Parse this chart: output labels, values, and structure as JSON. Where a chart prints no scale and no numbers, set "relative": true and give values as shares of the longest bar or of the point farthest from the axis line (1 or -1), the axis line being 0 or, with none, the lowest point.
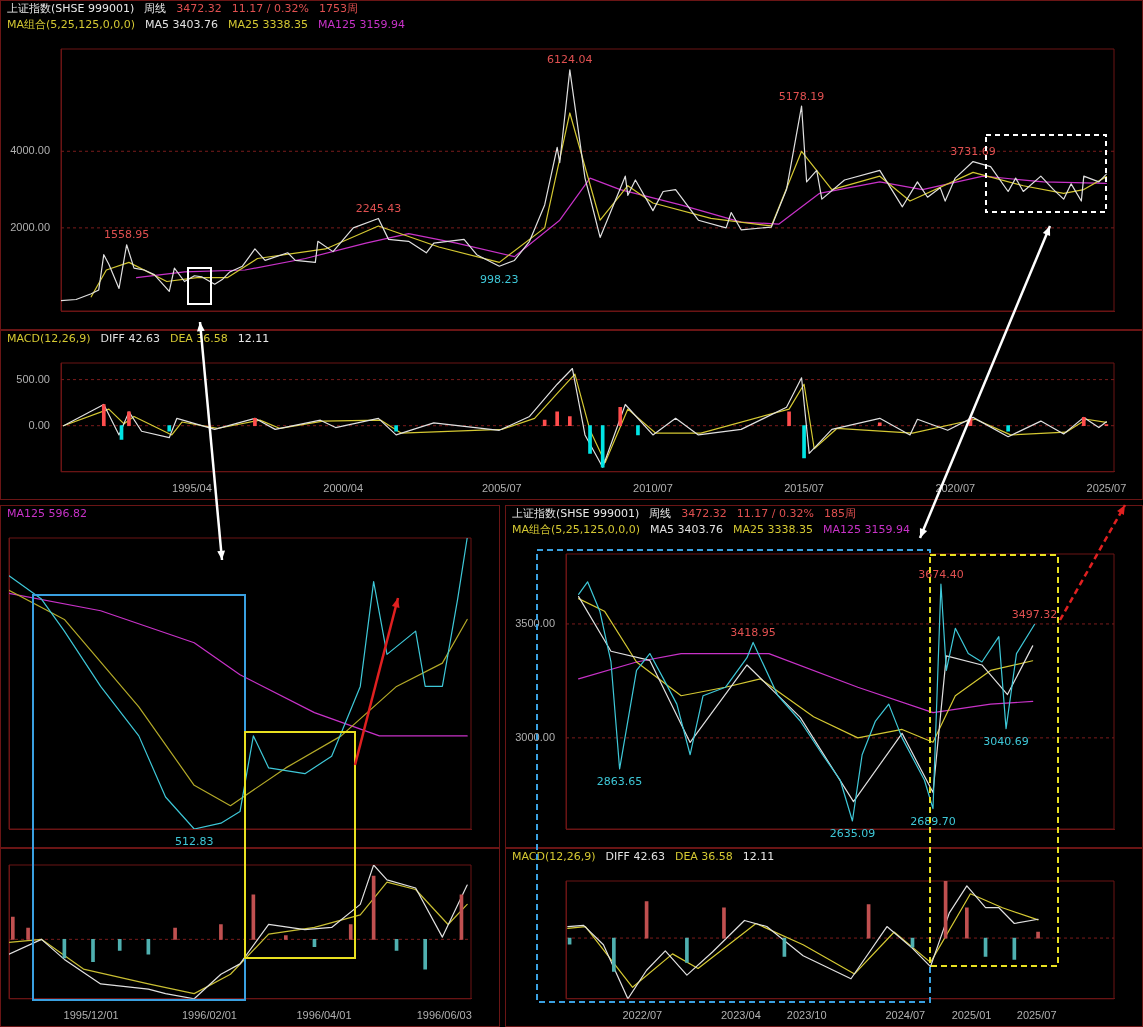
{
  "chart_data": [
    {
      "type": "line",
      "title": "上证指数(SHSE 999001)",
      "subtitle": "周线",
      "legend_title": "MA组合(5,25,125,0,0,0)",
      "legend": "top left",
      "grid": "y",
      "tick_labels": "y",
      "annotations": [
        "3472.32",
        "11.17 / 0.32%",
        "1753周",
        {
          "text": "1558.95",
          "x": "1993-02",
          "y": 1558.95
        },
        {
          "text": "2245.43",
          "x": "2001-06",
          "y": 2245.43
        },
        {
          "text": "998.23",
          "x": "2005-06",
          "y": 998.23
        },
        {
          "text": "6124.04",
          "x": "2007-10",
          "y": 6124.04
        },
        {
          "text": "5178.19",
          "x": "2015-06",
          "y": 5178.19
        },
        {
          "text": "3731.69",
          "x": "2021-02",
          "y": 3731.69
        }
      ],
      "xlim": [
        "1990-12",
        "2025-10"
      ],
      "ylim": [
        -170,
        6670
      ],
      "yticks": [
        {
          "value": 2000,
          "label": "2000.00"
        },
        {
          "value": 4000,
          "label": "4000.00"
        }
      ],
      "series": [
        {
          "name": "MA5 3403.76",
          "color": "#e0e0e0",
          "x": [
            "1990-12",
            "1991-06",
            "1991-12",
            "1992-03",
            "1992-05",
            "1992-07",
            "1992-11",
            "1993-02",
            "1993-05",
            "1993-09",
            "1994-01",
            "1994-07",
            "1994-09",
            "1995-01",
            "1995-05",
            "1995-08",
            "1996-01",
            "1996-04",
            "1996-07",
            "1996-12",
            "1997-05",
            "1997-09",
            "1998-06",
            "1998-09",
            "1999-05",
            "1999-06",
            "1999-12",
            "2000-08",
            "2001-06",
            "2001-10",
            "2002-06",
            "2003-01",
            "2003-04",
            "2004-04",
            "2004-09",
            "2005-06",
            "2005-12",
            "2006-06",
            "2006-12",
            "2007-05",
            "2007-06",
            "2007-10",
            "2008-04",
            "2008-06",
            "2008-10",
            "2009-08",
            "2009-09",
            "2009-12",
            "2010-07",
            "2010-11",
            "2011-04",
            "2012-01",
            "2012-12",
            "2013-02",
            "2013-06",
            "2014-06",
            "2014-12",
            "2015-06",
            "2015-08",
            "2015-12",
            "2016-02",
            "2016-11",
            "2018-01",
            "2018-10",
            "2019-04",
            "2019-08",
            "2020-01",
            "2020-03",
            "2020-07",
            "2021-02",
            "2021-09",
            "2022-04",
            "2022-07",
            "2022-10",
            "2023-05",
            "2023-10",
            "2024-02",
            "2024-05",
            "2024-09",
            "2024-10",
            "2025-04",
            "2025-07"
          ],
          "values": [
            100,
            130,
            280,
            380,
            1300,
            1050,
            420,
            1558.95,
            950,
            900,
            780,
            340,
            950,
            600,
            750,
            720,
            530,
            650,
            850,
            1000,
            1450,
            1150,
            1350,
            1150,
            1100,
            1650,
            1380,
            2000,
            2245.43,
            1700,
            1650,
            1350,
            1600,
            1700,
            1300,
            998.23,
            1150,
            1650,
            2600,
            4100,
            3700,
            6124.04,
            3300,
            2800,
            1750,
            3350,
            2850,
            3250,
            2450,
            2950,
            3000,
            2200,
            2000,
            2400,
            1950,
            2020,
            3000,
            5178.19,
            3200,
            3500,
            2750,
            3250,
            3500,
            2550,
            3200,
            2800,
            3050,
            2700,
            3300,
            3731.69,
            3600,
            2950,
            3300,
            2950,
            3350,
            3000,
            2750,
            3150,
            2700,
            3350,
            3200,
            3403.76
          ]
        },
        {
          "name": "MA25 3338.35",
          "color": "#d4c832",
          "x": [
            "1991-12",
            "1992-06",
            "1993-03",
            "1994-06",
            "1995-06",
            "1996-06",
            "1997-06",
            "1999-09",
            "2001-06",
            "2003-06",
            "2005-06",
            "2006-12",
            "2007-10",
            "2008-10",
            "2009-09",
            "2010-07",
            "2012-06",
            "2014-06",
            "2015-06",
            "2016-06",
            "2018-01",
            "2019-01",
            "2021-02",
            "2022-10",
            "2024-02",
            "2024-10",
            "2025-07"
          ],
          "values": [
            200,
            900,
            1100,
            600,
            700,
            700,
            1200,
            1450,
            2050,
            1500,
            1100,
            2000,
            5000,
            2200,
            3100,
            2650,
            2250,
            2050,
            4000,
            3000,
            3350,
            2700,
            3450,
            3100,
            2900,
            3000,
            3338.35
          ]
        },
        {
          "name": "MA125 3159.94",
          "color": "#c832c8",
          "x": [
            "1993-06",
            "1995-01",
            "1997-01",
            "1999-01",
            "2001-01",
            "2002-06",
            "2004-01",
            "2005-12",
            "2007-06",
            "2008-06",
            "2009-06",
            "2011-06",
            "2013-06",
            "2014-09",
            "2016-01",
            "2018-01",
            "2019-06",
            "2021-06",
            "2023-06",
            "2025-07"
          ],
          "values": [
            700,
            850,
            900,
            1200,
            1600,
            1850,
            1600,
            1250,
            2200,
            3300,
            3000,
            2600,
            2150,
            2100,
            2900,
            3200,
            3000,
            3350,
            3200,
            3159.94
          ]
        }
      ]
    },
    {
      "type": "line",
      "legend_title": "MACD(12,26,9)",
      "legend": "top left",
      "grid": "y",
      "annotations": [
        "12.11"
      ],
      "xlim": [
        "1990-12",
        "2025-10"
      ],
      "xticks": [
        {
          "value": "1995-04",
          "label": "1995/04"
        },
        {
          "value": "2000-04",
          "label": "2000/04"
        },
        {
          "value": "2005-07",
          "label": "2005/07"
        },
        {
          "value": "2010-07",
          "label": "2010/07"
        },
        {
          "value": "2015-07",
          "label": "2015/07"
        },
        {
          "value": "2020-07",
          "label": "2020/07"
        },
        {
          "value": "2025-07",
          "label": "2025/07"
        }
      ],
      "ylim": [
        -500,
        680
      ],
      "yticks": [
        {
          "value": 0,
          "label": "0.00"
        },
        {
          "value": 500,
          "label": "500.00"
        }
      ],
      "series": [
        {
          "type": "bar",
          "x": [
            "1992-05",
            "1992-12",
            "1993-03",
            "1994-07",
            "1997-05",
            "2002-01",
            "2006-12",
            "2007-05",
            "2007-10",
            "2008-06",
            "2008-11",
            "2009-06",
            "2010-01",
            "2015-01",
            "2015-07",
            "2018-01",
            "2021-01",
            "2022-04",
            "2024-10",
            "2025-07"
          ],
          "values": [
            230,
            -150,
            150,
            -60,
            80,
            -60,
            60,
            150,
            100,
            -300,
            -450,
            200,
            -100,
            150,
            -350,
            30,
            80,
            -60,
            90,
            12.11
          ],
          "colors": [
            "#ff4d4d",
            "#00e5e5",
            "#ff4d4d",
            "#00e5e5",
            "#ff4d4d",
            "#00e5e5",
            "#ff4d4d",
            "#ff4d4d",
            "#ff4d4d",
            "#00e5e5",
            "#00e5e5",
            "#ff4d4d",
            "#00e5e5",
            "#ff4d4d",
            "#00e5e5",
            "#ff4d4d",
            "#ff4d4d",
            "#00e5e5",
            "#ff4d4d",
            "#ff4d4d"
          ]
        },
        {
          "name": "DIFF 42.63",
          "color": "#e0e0e0",
          "x": [
            "1991-01",
            "1992-05",
            "1992-11",
            "1993-03",
            "1993-08",
            "1994-07",
            "1994-10",
            "1996-01",
            "1997-05",
            "1998-01",
            "1999-07",
            "2000-01",
            "2001-06",
            "2002-01",
            "2003-04",
            "2005-06",
            "2006-06",
            "2007-05",
            "2007-11",
            "2008-04",
            "2008-11",
            "2009-08",
            "2010-07",
            "2011-04",
            "2012-01",
            "2013-06",
            "2014-12",
            "2015-06",
            "2015-09",
            "2016-06",
            "2018-01",
            "2019-01",
            "2019-04",
            "2020-04",
            "2021-02",
            "2022-04",
            "2023-05",
            "2024-02",
            "2024-10",
            "2025-04",
            "2025-07"
          ],
          "values": [
            0,
            230,
            -100,
            150,
            -60,
            -130,
            80,
            -40,
            80,
            -40,
            60,
            -20,
            80,
            -100,
            30,
            -50,
            100,
            450,
            620,
            -100,
            -450,
            230,
            -100,
            80,
            -100,
            -40,
            200,
            520,
            -300,
            -40,
            80,
            -100,
            70,
            -50,
            90,
            -120,
            50,
            -90,
            90,
            -20,
            42.63
          ]
        },
        {
          "name": "DEA 36.58",
          "color": "#d4c832",
          "x": [
            "1991-01",
            "1992-07",
            "1993-01",
            "1993-05",
            "1994-08",
            "1994-12",
            "1996-02",
            "1997-07",
            "1998-03",
            "1999-08",
            "2001-07",
            "2002-03",
            "2005-07",
            "2006-08",
            "2007-06",
            "2007-12",
            "2008-06",
            "2008-12",
            "2009-09",
            "2010-08",
            "2012-02",
            "2015-01",
            "2015-07",
            "2015-11",
            "2016-08",
            "2019-02",
            "2021-03",
            "2022-05",
            "2024-03",
            "2024-11",
            "2025-07"
          ],
          "values": [
            0,
            180,
            20,
            100,
            -100,
            40,
            -30,
            60,
            -30,
            50,
            60,
            -80,
            -40,
            80,
            380,
            560,
            -50,
            -400,
            180,
            -80,
            -80,
            180,
            450,
            -250,
            -30,
            -80,
            70,
            -100,
            -70,
            70,
            36.58
          ]
        }
      ]
    },
    {
      "type": "line",
      "relative": true,
      "legend": "top left",
      "tick_labels": false,
      "annotations": [
        {
          "text": "512.83",
          "x": "1996-01-24",
          "y": 0
        }
      ],
      "xlim": [
        "1995-10-19",
        "1996-06-17"
      ],
      "series": [
        {
          "color": "#3ec8d8",
          "x": [
            "1995-10-19",
            "1995-11-05",
            "1995-11-17",
            "1995-12-06",
            "1995-12-26",
            "1996-01-09",
            "1996-01-24",
            "1996-02-07",
            "1996-02-17",
            "1996-02-24",
            "1996-03-03",
            "1996-03-22",
            "1996-04-05",
            "1996-04-20",
            "1996-04-27",
            "1996-05-04",
            "1996-05-19",
            "1996-05-24",
            "1996-06-02",
            "1996-06-10",
            "1996-06-15"
          ],
          "values": [
            0.87,
            0.79,
            0.68,
            0.49,
            0.32,
            0.11,
            0,
            0.02,
            0.06,
            0.32,
            0.21,
            0.19,
            0.25,
            0.49,
            0.85,
            0.6,
            0.68,
            0.49,
            0.49,
            0.79,
            1
          ]
        },
        {
          "color": "#b4aa28",
          "x": [
            "1995-10-19",
            "1995-11-17",
            "1995-12-26",
            "1996-01-24",
            "1996-02-12",
            "1996-03-12",
            "1996-04-10",
            "1996-05-09",
            "1996-06-02",
            "1996-06-15"
          ],
          "values": [
            0.82,
            0.72,
            0.42,
            0.15,
            0.08,
            0.21,
            0.32,
            0.49,
            0.57,
            0.72
          ]
        },
        {
          "name": "MA125 596.82",
          "color": "#c832c8",
          "x": [
            "1995-10-19",
            "1995-12-06",
            "1996-01-24",
            "1996-02-17",
            "1996-03-27",
            "1996-04-30",
            "1996-06-15"
          ],
          "values": [
            0.81,
            0.75,
            0.64,
            0.53,
            0.4,
            0.32,
            0.32
          ]
        }
      ]
    },
    {
      "type": "line",
      "relative": true,
      "tick_labels": "x",
      "ref_lines": [
        {
          "axis": "y",
          "value": 0,
          "color": "#7a1c1c",
          "line_style": "dashed"
        }
      ],
      "xlim": [
        "1995-10-19",
        "1996-06-17"
      ],
      "xticks": [
        {
          "value": "1995-12-01",
          "label": "1995/12/01"
        },
        {
          "value": "1996-02-01",
          "label": "1996/02/01"
        },
        {
          "value": "1996-04-01",
          "label": "1996/04/01"
        },
        {
          "value": "1996-06-03",
          "label": "1996/06/03"
        }
      ],
      "series": [
        {
          "type": "bar",
          "x": [
            "1995-10-21",
            "1995-10-29",
            "1995-11-17",
            "1995-12-02",
            "1995-12-16",
            "1995-12-31",
            "1996-01-14",
            "1996-02-07",
            "1996-02-24",
            "1996-03-12",
            "1996-03-27",
            "1996-04-15",
            "1996-04-27",
            "1996-05-09",
            "1996-05-24",
            "1996-06-12"
          ],
          "values": [
            0.3,
            0.15,
            -0.25,
            -0.3,
            -0.15,
            -0.2,
            0.15,
            0.2,
            0.6,
            0.05,
            -0.1,
            0.2,
            0.85,
            -0.15,
            -0.4,
            0.6
          ],
          "colors": [
            "#c05050",
            "#c05050",
            "#4fb0b0",
            "#4fb0b0",
            "#4fb0b0",
            "#4fb0b0",
            "#c05050",
            "#c05050",
            "#c05050",
            "#c05050",
            "#4fb0b0",
            "#c05050",
            "#c05050",
            "#4fb0b0",
            "#4fb0b0",
            "#c05050"
          ]
        },
        {
          "color": "#e0e0e0",
          "x": [
            "1995-10-19",
            "1995-11-05",
            "1995-11-17",
            "1995-12-06",
            "1995-12-31",
            "1996-01-09",
            "1996-01-24",
            "1996-02-07",
            "1996-02-17",
            "1996-03-03",
            "1996-03-22",
            "1996-04-05",
            "1996-04-20",
            "1996-04-27",
            "1996-05-04",
            "1996-05-19",
            "1996-06-02",
            "1996-06-15"
          ],
          "values": [
            -0.2,
            0,
            -0.27,
            -0.6,
            -0.67,
            -0.73,
            -0.8,
            -0.47,
            -0.33,
            0.2,
            0.13,
            0.16,
            0.47,
            1,
            0.8,
            0.69,
            0.03,
            0.73
          ]
        },
        {
          "color": "#c8be32",
          "x": [
            "1995-10-19",
            "1995-11-05",
            "1995-11-27",
            "1995-12-31",
            "1996-01-24",
            "1996-02-12",
            "1996-03-03",
            "1996-03-27",
            "1996-04-20",
            "1996-05-04",
            "1996-05-19",
            "1996-06-05",
            "1996-06-15"
          ],
          "values": [
            -0.04,
            0,
            -0.4,
            -0.6,
            -0.73,
            -0.47,
            0.07,
            0.16,
            0.33,
            0.77,
            0.67,
            0.2,
            0.47
          ]
        }
      ]
    },
    {
      "type": "line",
      "title": "上证指数(SHSE 999001)",
      "subtitle": "周线",
      "legend_title": "MA组合(5,25,125,0,0,0)",
      "legend": "top left",
      "tick_labels": "y",
      "grid": "y",
      "annotations": [
        "3472.32",
        "11.17 / 0.32%",
        "185周",
        {
          "text": "2863.65",
          "x": "2022-04-29",
          "y": 2863.65
        },
        {
          "text": "3418.95",
          "x": "2023-05-05",
          "y": 3418.95
        },
        {
          "text": "2635.09",
          "x": "2024-02-05",
          "y": 2635.09
        },
        {
          "text": "2689.70",
          "x": "2024-09-16",
          "y": 2689.7
        },
        {
          "text": "3674.40",
          "x": "2024-10-08",
          "y": 3674.4
        },
        {
          "text": "3040.69",
          "x": "2025-04-07",
          "y": 3040.69
        },
        {
          "text": "3497.32",
          "x": "2025-06-25",
          "y": 3497.32
        }
      ],
      "xlim": [
        "2021-12-01",
        "2026-02-01"
      ],
      "ylim": [
        2600,
        3807
      ],
      "yticks": [
        {
          "value": 3000,
          "label": "3000.00"
        },
        {
          "value": 3500,
          "label": "3500.00"
        }
      ],
      "series": [
        {
          "color": "#3ec8d8",
          "x": [
            "2022-01-05",
            "2022-01-30",
            "2022-03-05",
            "2022-04-05",
            "2022-04-29",
            "2022-06-15",
            "2022-07-22",
            "2022-08-29",
            "2022-10-05",
            "2022-11-11",
            "2022-12-17",
            "2023-02-17",
            "2023-04-18",
            "2023-05-05",
            "2023-07-13",
            "2023-09-13",
            "2023-11-14",
            "2024-01-02",
            "2024-02-05",
            "2024-03-03",
            "2024-04-09",
            "2024-05-16",
            "2024-06-22",
            "2024-08-23",
            "2024-09-16",
            "2024-10-08",
            "2024-10-23",
            "2024-11-17",
            "2024-12-23",
            "2025-01-30",
            "2025-03-18",
            "2025-04-07",
            "2025-05-06",
            "2025-06-25"
          ],
          "values": [
            3630,
            3685,
            3556,
            3333,
            2863.65,
            3296,
            3370,
            3259,
            3148,
            2926,
            3185,
            3222,
            3352,
            3418.95,
            3185,
            3074,
            2926,
            2815,
            2635.09,
            2926,
            3074,
            3148,
            3000,
            2815,
            2689.7,
            3674.4,
            3296,
            3481,
            3370,
            3333,
            3444,
            3040.69,
            3370,
            3497.32
          ]
        },
        {
          "name": "MA5 3403.76",
          "color": "#e0e0e0",
          "x": [
            "2022-01-05",
            "2022-04-05",
            "2022-07-22",
            "2022-11-11",
            "2023-04-18",
            "2023-09-13",
            "2024-02-08",
            "2024-06-22",
            "2024-09-16",
            "2024-10-23",
            "2025-01-30",
            "2025-04-11",
            "2025-06-20"
          ],
          "values": [
            3620,
            3380,
            3340,
            2980,
            3320,
            3090,
            2720,
            3020,
            2760,
            3360,
            3320,
            3190,
            3403.76
          ]
        },
        {
          "name": "MA25 3338.35",
          "color": "#d4c832",
          "x": [
            "2022-01-05",
            "2022-03-18",
            "2022-06-15",
            "2022-10-17",
            "2023-02-17",
            "2023-05-25",
            "2023-10-20",
            "2024-02-20",
            "2024-06-22",
            "2024-09-16",
            "2024-11-17",
            "2025-02-23",
            "2025-06-20"
          ],
          "values": [
            3611,
            3556,
            3333,
            3185,
            3222,
            3259,
            3093,
            3000,
            3037,
            2981,
            3185,
            3296,
            3338.35
          ]
        },
        {
          "name": "MA125 3159.94",
          "color": "#c832c8",
          "x": [
            "2022-01-05",
            "2022-06-15",
            "2022-10-17",
            "2023-06-18",
            "2024-02-20",
            "2024-09-16",
            "2025-02-23",
            "2025-06-20"
          ],
          "values": [
            3259,
            3333,
            3370,
            3370,
            3222,
            3111,
            3148,
            3159.94
          ]
        }
      ]
    },
    {
      "type": "line",
      "relative": true,
      "legend_title": "MACD(12,26,9)",
      "legend": "top left",
      "tick_labels": "x",
      "annotations": [
        "12.11"
      ],
      "ref_lines": [
        {
          "axis": "y",
          "value": 0,
          "color": "#7a1c1c",
          "line_style": "dashed"
        }
      ],
      "xlim": [
        "2021-12-01",
        "2026-02-01"
      ],
      "xticks": [
        {
          "value": "2022-07-01",
          "label": "2022/07"
        },
        {
          "value": "2023-04-01",
          "label": "2023/04"
        },
        {
          "value": "2023-10-01",
          "label": "2023/10"
        },
        {
          "value": "2024-07-01",
          "label": "2024/07"
        },
        {
          "value": "2025-01-01",
          "label": "2025/01"
        },
        {
          "value": "2025-07-01",
          "label": "2025/07"
        }
      ],
      "series": [
        {
          "type": "bar",
          "x": [
            "2021-12-11",
            "2022-04-13",
            "2022-07-13",
            "2022-11-02",
            "2023-02-13",
            "2023-07-31",
            "2024-03-21",
            "2024-07-21",
            "2024-10-21",
            "2024-12-19",
            "2025-02-09",
            "2025-04-30",
            "2025-07-05"
          ],
          "values": [
            -0.1,
            -0.55,
            0.6,
            -0.4,
            0.5,
            -0.3,
            0.55,
            -0.15,
            0.94,
            0.5,
            -0.3,
            -0.35,
            0.1
          ],
          "colors": [
            "#4fb0b0",
            "#4fb0b0",
            "#c05050",
            "#4fb0b0",
            "#c05050",
            "#4fb0b0",
            "#c05050",
            "#4fb0b0",
            "#c05050",
            "#c05050",
            "#4fb0b0",
            "#4fb0b0",
            "#c05050"
          ]
        },
        {
          "name": "DIFF 42.63",
          "color": "#e0e0e0",
          "x": [
            "2021-12-06",
            "2022-01-19",
            "2022-03-15",
            "2022-05-22",
            "2022-07-13",
            "2022-09-03",
            "2022-11-02",
            "2023-01-12",
            "2023-04-11",
            "2023-06-12",
            "2023-09-21",
            "2024-02-01",
            "2024-05-11",
            "2024-07-21",
            "2024-09-09",
            "2024-10-31",
            "2024-12-19",
            "2025-02-09",
            "2025-03-18",
            "2025-04-30",
            "2025-07-05"
          ],
          "values": [
            0.19,
            0.21,
            -0.11,
            -1,
            -0.53,
            -0.21,
            -0.61,
            -0.23,
            0.29,
            0.19,
            -0.29,
            -0.67,
            0.19,
            -0.17,
            -0.47,
            0.41,
            0.86,
            0.5,
            0.5,
            0.24,
            0.31
          ]
        },
        {
          "name": "DEA 36.58",
          "color": "#d4c832",
          "x": [
            "2021-12-06",
            "2022-01-24",
            "2022-06-04",
            "2022-09-23",
            "2022-12-03",
            "2023-05-13",
            "2023-09-21",
            "2024-02-11",
            "2024-05-31",
            "2024-09-09",
            "2024-12-29",
            "2025-03-28",
            "2025-07-05"
          ],
          "values": [
            0.16,
            0.19,
            -0.81,
            -0.26,
            -0.5,
            0.24,
            -0.11,
            -0.59,
            0.1,
            -0.4,
            0.73,
            0.5,
            0.3
          ]
        }
      ]
    }
  ]
}
